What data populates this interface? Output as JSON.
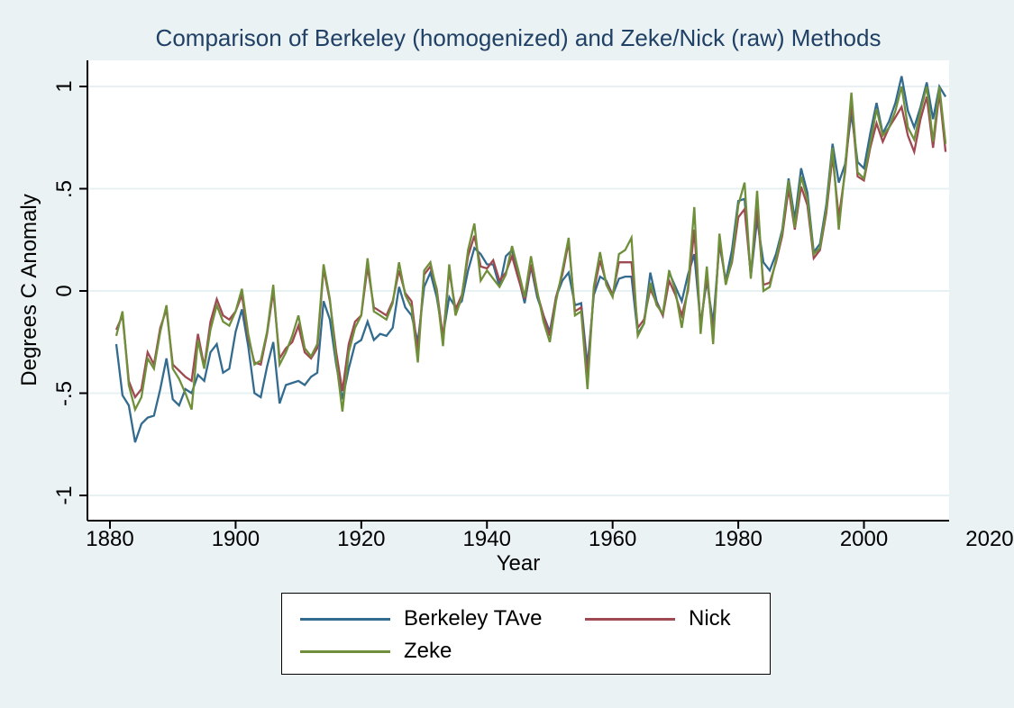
{
  "colors": {
    "page_background": "#eaf2f3",
    "plot_background": "#ffffff",
    "gridline": "#e7f1f3",
    "axis": "#000000",
    "title_text": "#204066",
    "berkeley_blue": "#336b8f",
    "nick_red": "#9f4a52",
    "zeke_green": "#6f8f3b"
  },
  "chart_data": {
    "type": "line",
    "title": "Comparison of Berkeley (homogenized) and Zeke/Nick (raw) Methods",
    "xlabel": "Year",
    "ylabel": "Degrees C Anomaly",
    "xlim": [
      1880,
      2020
    ],
    "ylim": [
      -1.12,
      1.12
    ],
    "grid": "horizontal-only",
    "legend_position": "bottom-center",
    "x_ticks": [
      1880,
      1900,
      1920,
      1940,
      1960,
      1980,
      2000,
      2020
    ],
    "y_ticks": [
      {
        "label": "1",
        "value": 1
      },
      {
        "label": ".5",
        "value": 0.5
      },
      {
        "label": "0",
        "value": 0
      },
      {
        "label": "-.5",
        "value": -0.5
      },
      {
        "label": "-1",
        "value": -1
      }
    ],
    "x_start_year": 1881,
    "x_end_year": 2013,
    "series": [
      {
        "name": "Berkeley TAve",
        "color": "#336b8f",
        "values": [
          -0.26,
          -0.51,
          -0.56,
          -0.74,
          -0.65,
          -0.62,
          -0.61,
          -0.48,
          -0.33,
          -0.53,
          -0.56,
          -0.48,
          -0.5,
          -0.41,
          -0.44,
          -0.3,
          -0.26,
          -0.4,
          -0.38,
          -0.2,
          -0.09,
          -0.27,
          -0.5,
          -0.52,
          -0.37,
          -0.25,
          -0.55,
          -0.46,
          -0.45,
          -0.44,
          -0.46,
          -0.42,
          -0.4,
          -0.05,
          -0.14,
          -0.36,
          -0.53,
          -0.38,
          -0.26,
          -0.24,
          -0.15,
          -0.24,
          -0.21,
          -0.22,
          -0.18,
          0.02,
          -0.08,
          -0.12,
          -0.25,
          0.02,
          0.09,
          -0.03,
          -0.22,
          -0.03,
          -0.08,
          -0.05,
          0.1,
          0.21,
          0.18,
          0.13,
          0.13,
          0.02,
          0.17,
          0.2,
          0.07,
          -0.06,
          0.12,
          -0.03,
          -0.12,
          -0.2,
          -0.03,
          0.05,
          0.09,
          -0.07,
          -0.06,
          -0.37,
          -0.02,
          0.07,
          0.05,
          -0.02,
          0.06,
          0.07,
          0.07,
          -0.21,
          -0.16,
          0.09,
          -0.05,
          -0.12,
          0.09,
          0.02,
          -0.05,
          0.08,
          0.18,
          -0.16,
          0.05,
          -0.16,
          0.23,
          0.05,
          0.2,
          0.44,
          0.45,
          0.07,
          0.35,
          0.14,
          0.1,
          0.18,
          0.3,
          0.55,
          0.35,
          0.6,
          0.48,
          0.19,
          0.23,
          0.42,
          0.72,
          0.53,
          0.62,
          0.87,
          0.63,
          0.6,
          0.77,
          0.92,
          0.77,
          0.83,
          0.92,
          1.05,
          0.88,
          0.8,
          0.9,
          1.02,
          0.84,
          1.0,
          0.95
        ]
      },
      {
        "name": "Nick",
        "color": "#9f4a52",
        "values": [
          -0.19,
          -0.12,
          -0.44,
          -0.52,
          -0.48,
          -0.3,
          -0.36,
          -0.18,
          -0.09,
          -0.36,
          -0.39,
          -0.42,
          -0.44,
          -0.21,
          -0.37,
          -0.15,
          -0.04,
          -0.12,
          -0.14,
          -0.1,
          -0.02,
          -0.23,
          -0.35,
          -0.36,
          -0.21,
          0.0,
          -0.33,
          -0.28,
          -0.25,
          -0.17,
          -0.3,
          -0.33,
          -0.28,
          0.11,
          -0.05,
          -0.3,
          -0.49,
          -0.26,
          -0.15,
          -0.12,
          0.12,
          -0.08,
          -0.1,
          -0.12,
          -0.05,
          0.1,
          -0.01,
          -0.05,
          -0.3,
          0.08,
          0.12,
          0.01,
          -0.23,
          0.1,
          -0.09,
          -0.02,
          0.17,
          0.27,
          0.12,
          0.11,
          0.15,
          0.05,
          0.09,
          0.17,
          0.06,
          -0.04,
          0.13,
          -0.01,
          -0.12,
          -0.22,
          -0.03,
          0.08,
          0.24,
          -0.1,
          -0.08,
          -0.42,
          0.0,
          0.15,
          0.04,
          -0.02,
          0.14,
          0.14,
          0.14,
          -0.18,
          -0.14,
          0.01,
          -0.06,
          -0.12,
          0.05,
          -0.02,
          -0.12,
          0.0,
          0.3,
          -0.18,
          0.08,
          -0.22,
          0.25,
          0.04,
          0.14,
          0.36,
          0.4,
          0.08,
          0.41,
          0.03,
          0.04,
          0.14,
          0.27,
          0.5,
          0.3,
          0.51,
          0.42,
          0.16,
          0.2,
          0.38,
          0.66,
          0.36,
          0.58,
          0.93,
          0.56,
          0.54,
          0.7,
          0.82,
          0.73,
          0.8,
          0.85,
          0.9,
          0.76,
          0.68,
          0.84,
          0.95,
          0.7,
          0.97,
          0.68
        ]
      },
      {
        "name": "Zeke",
        "color": "#6f8f3b",
        "values": [
          -0.22,
          -0.1,
          -0.46,
          -0.58,
          -0.52,
          -0.33,
          -0.38,
          -0.2,
          -0.07,
          -0.38,
          -0.43,
          -0.5,
          -0.58,
          -0.24,
          -0.38,
          -0.19,
          -0.07,
          -0.15,
          -0.17,
          -0.1,
          0.01,
          -0.21,
          -0.36,
          -0.34,
          -0.2,
          0.03,
          -0.36,
          -0.3,
          -0.22,
          -0.12,
          -0.28,
          -0.32,
          -0.26,
          0.13,
          -0.04,
          -0.34,
          -0.59,
          -0.3,
          -0.18,
          -0.12,
          0.16,
          -0.1,
          -0.12,
          -0.14,
          -0.06,
          0.14,
          -0.02,
          -0.08,
          -0.35,
          0.1,
          0.14,
          0.0,
          -0.27,
          0.13,
          -0.12,
          -0.03,
          0.2,
          0.33,
          0.05,
          0.1,
          0.06,
          0.02,
          0.08,
          0.22,
          0.1,
          -0.03,
          0.17,
          0.0,
          -0.15,
          -0.25,
          -0.05,
          0.1,
          0.26,
          -0.12,
          -0.1,
          -0.48,
          0.02,
          0.19,
          0.03,
          -0.03,
          0.18,
          0.2,
          0.26,
          -0.22,
          -0.16,
          0.04,
          -0.07,
          -0.11,
          0.1,
          0.0,
          -0.18,
          0.02,
          0.41,
          -0.21,
          0.12,
          -0.26,
          0.28,
          0.03,
          0.15,
          0.42,
          0.53,
          0.06,
          0.49,
          0.0,
          0.02,
          0.15,
          0.29,
          0.54,
          0.31,
          0.56,
          0.45,
          0.18,
          0.21,
          0.4,
          0.7,
          0.3,
          0.6,
          0.97,
          0.58,
          0.55,
          0.72,
          0.89,
          0.76,
          0.8,
          0.88,
          1.0,
          0.8,
          0.74,
          0.88,
          1.0,
          0.73,
          1.0,
          0.72
        ]
      }
    ],
    "legend": {
      "rows": [
        [
          "Berkeley TAve",
          "Nick"
        ],
        [
          "Zeke"
        ]
      ]
    }
  }
}
